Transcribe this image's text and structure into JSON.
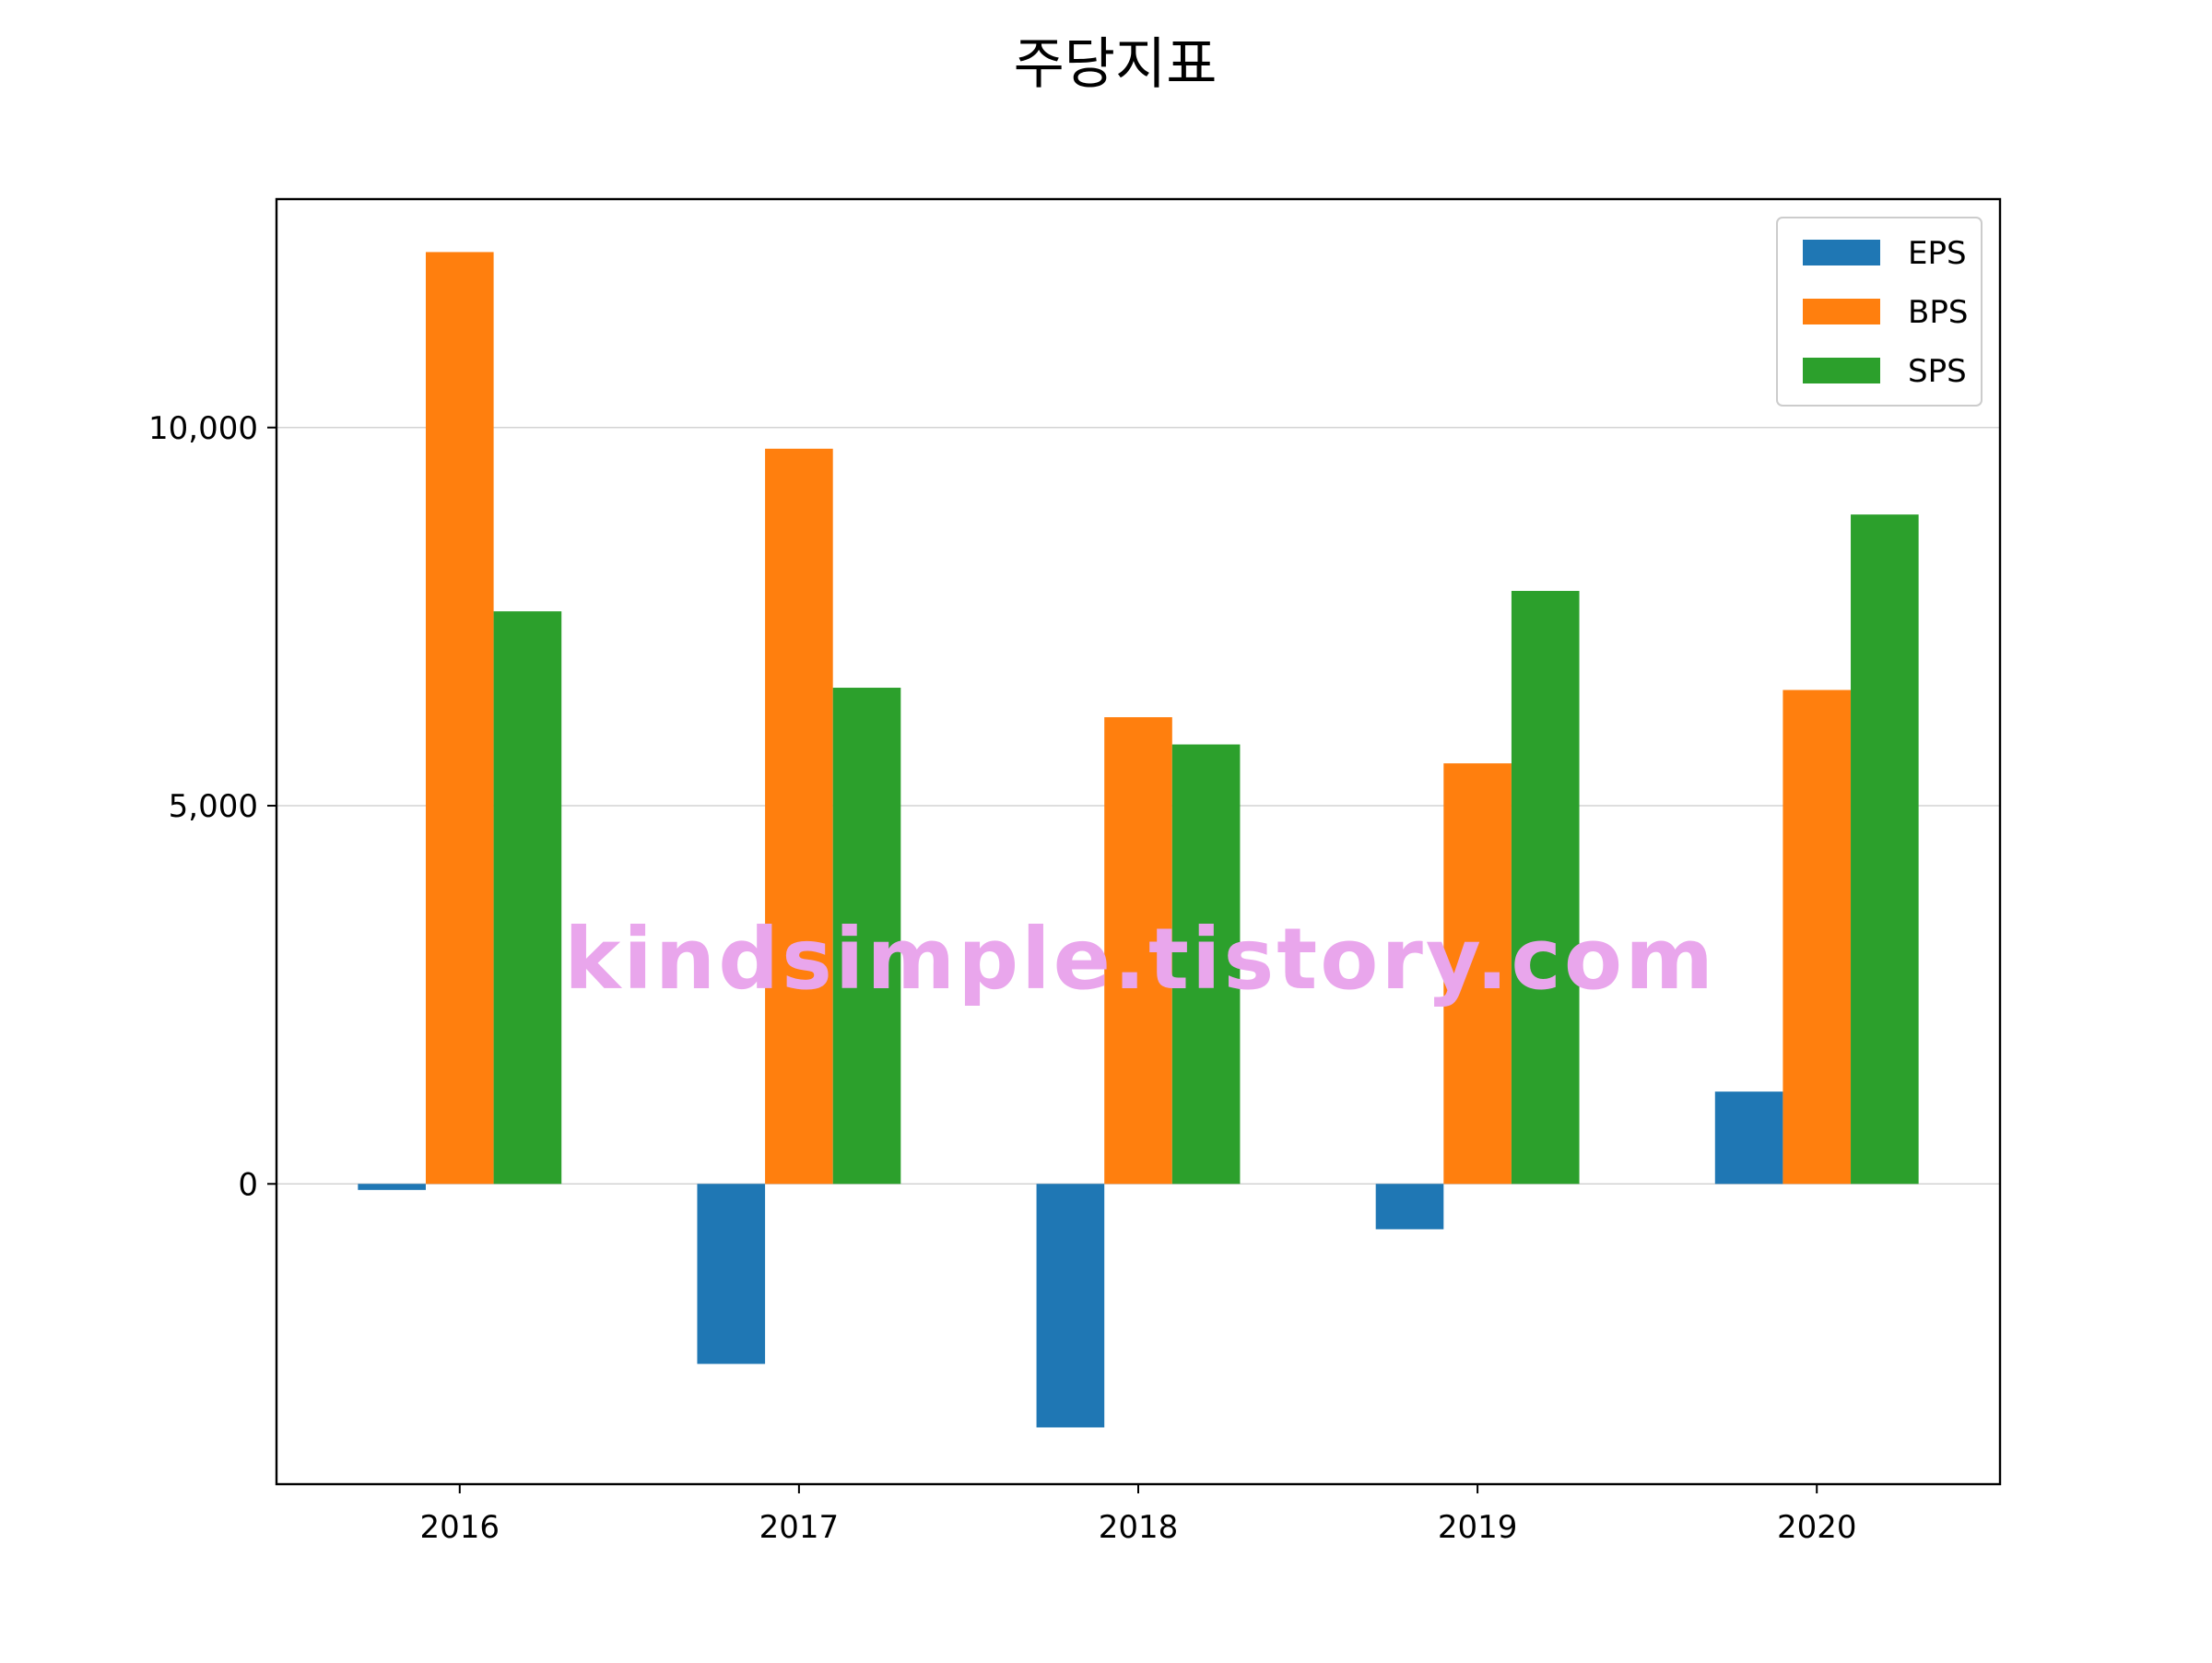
{
  "chart_data": {
    "type": "bar",
    "title": "주당지표",
    "xlabel": "",
    "ylabel": "",
    "categories": [
      "2016",
      "2017",
      "2018",
      "2019",
      "2020"
    ],
    "series": [
      {
        "name": "EPS",
        "color": "#1f77b4",
        "values": [
          -80,
          -2380,
          -3220,
          -600,
          1220
        ]
      },
      {
        "name": "BPS",
        "color": "#ff7f0e",
        "values": [
          12320,
          9720,
          6170,
          5560,
          6530
        ]
      },
      {
        "name": "SPS",
        "color": "#2ca02c",
        "values": [
          7570,
          6560,
          5810,
          7840,
          8850
        ]
      }
    ],
    "ylim": [
      -3970,
      13020
    ],
    "yticks": [
      0,
      5000,
      10000
    ],
    "ytick_labels": [
      "0",
      "5,000",
      "10,000"
    ],
    "grid": "horizontal",
    "legend_position": "upper right",
    "watermark": "kindsimple.tistory.com",
    "watermark_color": "#e9a6ec"
  }
}
